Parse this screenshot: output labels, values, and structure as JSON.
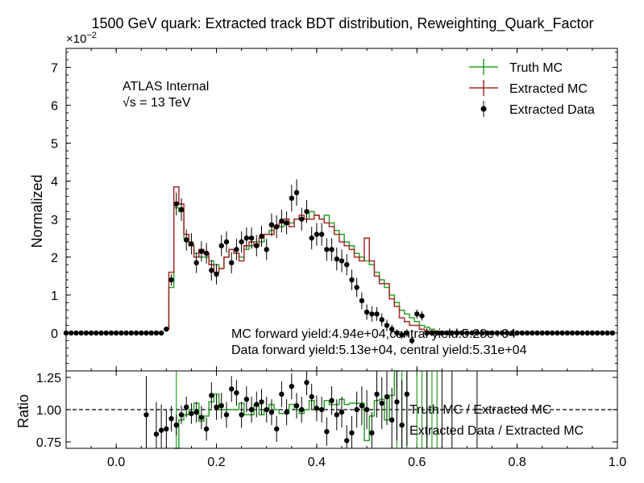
{
  "chart_data": [
    {
      "type": "line",
      "title": "1500 GeV quark: Extracted track BDT distribution, Reweighting_Quark_Factor",
      "ylabel": "Normalized",
      "y_multiplier_label": "×10",
      "y_multiplier_exp": "−2",
      "xlim": [
        -0.1,
        1.0
      ],
      "ylim": [
        -1,
        7.5
      ],
      "y_ticks": [
        0,
        1,
        2,
        3,
        4,
        5,
        6,
        7
      ],
      "y_tick_labels": [
        "0",
        "1",
        "2",
        "3",
        "4",
        "5",
        "6",
        "7"
      ],
      "annotations": {
        "experiment": "ATLAS Internal",
        "energy_sqrt": "√s",
        "energy_rest": " =  13 TeV",
        "mc_yield": "MC forward yield:4.94e+04,central yield:5.28e+04",
        "data_yield": "Data forward yield:5.13e+04, central yield:5.31e+04"
      },
      "legend": {
        "placement": "top-right",
        "entries": [
          "Truth MC",
          "Extracted MC",
          "Extracted Data"
        ]
      },
      "series": [
        {
          "name": "Truth MC",
          "color": "#2ca02c",
          "x": [
            0.1,
            0.11,
            0.12,
            0.13,
            0.14,
            0.15,
            0.16,
            0.17,
            0.18,
            0.19,
            0.2,
            0.21,
            0.22,
            0.23,
            0.24,
            0.25,
            0.26,
            0.27,
            0.28,
            0.29,
            0.3,
            0.31,
            0.32,
            0.33,
            0.34,
            0.35,
            0.36,
            0.37,
            0.38,
            0.39,
            0.4,
            0.41,
            0.42,
            0.43,
            0.44,
            0.45,
            0.46,
            0.47,
            0.48,
            0.49,
            0.5,
            0.51,
            0.52,
            0.53,
            0.54,
            0.55,
            0.56,
            0.57,
            0.58,
            0.59,
            0.6,
            0.61,
            0.62,
            0.63,
            0.64,
            0.65,
            0.66,
            0.67,
            0.68,
            0.69,
            0.7
          ],
          "values": [
            0.1,
            1.2,
            3.3,
            3.2,
            2.5,
            2.3,
            2.1,
            2.0,
            2.0,
            1.9,
            1.8,
            1.7,
            2.0,
            2.2,
            2.1,
            2.0,
            2.2,
            2.3,
            2.4,
            2.4,
            2.6,
            2.7,
            2.8,
            2.8,
            2.9,
            2.9,
            3.0,
            3.0,
            3.0,
            3.2,
            3.1,
            3.0,
            3.1,
            2.9,
            2.7,
            2.6,
            2.4,
            2.3,
            2.1,
            2.0,
            1.9,
            1.8,
            1.6,
            1.4,
            1.2,
            1.0,
            0.8,
            0.6,
            0.5,
            0.4,
            0.3,
            0.2,
            0.15,
            0.1,
            0.05,
            0.02,
            0,
            0,
            0,
            0,
            0
          ]
        },
        {
          "name": "Extracted MC",
          "color": "#a52a2a",
          "x": [
            0.1,
            0.11,
            0.12,
            0.13,
            0.14,
            0.15,
            0.16,
            0.17,
            0.18,
            0.19,
            0.2,
            0.21,
            0.22,
            0.23,
            0.24,
            0.25,
            0.26,
            0.27,
            0.28,
            0.29,
            0.3,
            0.31,
            0.32,
            0.33,
            0.34,
            0.35,
            0.36,
            0.37,
            0.38,
            0.39,
            0.4,
            0.41,
            0.42,
            0.43,
            0.44,
            0.45,
            0.46,
            0.47,
            0.48,
            0.49,
            0.5,
            0.51,
            0.52,
            0.53,
            0.54,
            0.55,
            0.56,
            0.57,
            0.58,
            0.59,
            0.6,
            0.61,
            0.62,
            0.63,
            0.64,
            0.65,
            0.66,
            0.67,
            0.68,
            0.69,
            0.7
          ],
          "values": [
            0.1,
            1.6,
            3.85,
            3.4,
            2.6,
            2.3,
            2.0,
            2.2,
            2.1,
            1.8,
            1.6,
            1.7,
            2.0,
            2.2,
            2.1,
            1.9,
            2.3,
            2.4,
            2.3,
            2.5,
            2.6,
            2.6,
            2.8,
            2.9,
            3.0,
            2.8,
            3.0,
            3.1,
            3.0,
            3.0,
            3.1,
            3.0,
            2.9,
            2.8,
            2.6,
            2.4,
            2.3,
            2.2,
            2.0,
            1.9,
            2.5,
            1.9,
            1.5,
            1.3,
            1.3,
            0.9,
            0.7,
            0.4,
            0.3,
            0.2,
            0.2,
            0.1,
            0.05,
            0.05,
            0.02,
            0.0,
            0,
            0,
            0,
            0,
            0
          ]
        },
        {
          "name": "Extracted Data",
          "color": "#000000",
          "x": [
            0.1,
            0.11,
            0.12,
            0.13,
            0.14,
            0.15,
            0.16,
            0.17,
            0.18,
            0.19,
            0.2,
            0.21,
            0.22,
            0.23,
            0.24,
            0.25,
            0.26,
            0.27,
            0.28,
            0.29,
            0.3,
            0.31,
            0.32,
            0.33,
            0.34,
            0.35,
            0.36,
            0.37,
            0.38,
            0.39,
            0.4,
            0.41,
            0.42,
            0.43,
            0.44,
            0.45,
            0.46,
            0.47,
            0.48,
            0.49,
            0.5,
            0.51,
            0.52,
            0.53,
            0.54,
            0.55,
            0.56,
            0.57,
            0.58,
            0.59,
            0.6,
            0.61,
            0.62,
            0.63,
            0.64,
            0.65,
            0.66,
            0.67,
            0.68,
            0.69,
            0.7
          ],
          "values": [
            0.1,
            1.4,
            3.4,
            3.25,
            2.45,
            2.35,
            1.85,
            2.15,
            2.1,
            1.65,
            1.55,
            2.3,
            2.4,
            1.85,
            2.2,
            2.4,
            2.5,
            2.5,
            2.3,
            2.55,
            2.2,
            2.85,
            2.8,
            2.95,
            2.9,
            3.55,
            3.7,
            3.0,
            3.2,
            2.5,
            2.6,
            2.6,
            2.2,
            2.2,
            1.95,
            1.9,
            1.8,
            1.4,
            1.2,
            0.85,
            0.55,
            0.5,
            0.5,
            0.35,
            0.2,
            0.1,
            0.0,
            -0.05,
            0.0,
            -0.2,
            0.5,
            0.45,
            0.0,
            0.0,
            0.0,
            0.0,
            0.0,
            0.0,
            0.0,
            0.0,
            0.0
          ],
          "errors": [
            0.05,
            0.15,
            0.3,
            0.3,
            0.28,
            0.28,
            0.27,
            0.27,
            0.27,
            0.27,
            0.27,
            0.28,
            0.28,
            0.28,
            0.28,
            0.28,
            0.28,
            0.28,
            0.28,
            0.28,
            0.28,
            0.3,
            0.3,
            0.3,
            0.3,
            0.35,
            0.35,
            0.3,
            0.3,
            0.3,
            0.3,
            0.3,
            0.3,
            0.3,
            0.3,
            0.3,
            0.28,
            0.27,
            0.25,
            0.22,
            0.2,
            0.2,
            0.18,
            0.17,
            0.15,
            0.12,
            0.1,
            0.1,
            0.1,
            0.1,
            0.12,
            0.12,
            0.1,
            0.08,
            0.06,
            0.05,
            0.04,
            0.03,
            0.02,
            0.02,
            0.02
          ]
        }
      ]
    },
    {
      "type": "line",
      "ylabel": "Ratio",
      "xlim": [
        -0.1,
        1.0
      ],
      "ylim": [
        0.7,
        1.3
      ],
      "x_ticks": [
        0.0,
        0.2,
        0.4,
        0.6,
        0.8,
        1.0
      ],
      "x_tick_labels": [
        "0.0",
        "0.2",
        "0.4",
        "0.6",
        "0.8",
        "1.0"
      ],
      "y_ticks": [
        0.75,
        1.0,
        1.25
      ],
      "y_tick_labels": [
        "0.75",
        "1.00",
        "1.25"
      ],
      "reference_line": 1.0,
      "legend": {
        "placement": "right",
        "entries": [
          "Truth MC / Extracted MC",
          "Extracted Data / Extracted MC"
        ]
      },
      "series": [
        {
          "name": "Truth MC / Extracted MC",
          "color": "#2ca02c",
          "x": [
            0.12,
            0.13,
            0.14,
            0.15,
            0.16,
            0.17,
            0.18,
            0.19,
            0.2,
            0.21,
            0.22,
            0.23,
            0.24,
            0.25,
            0.26,
            0.27,
            0.28,
            0.29,
            0.3,
            0.31,
            0.32,
            0.33,
            0.34,
            0.35,
            0.36,
            0.37,
            0.38,
            0.39,
            0.4,
            0.41,
            0.42,
            0.43,
            0.44,
            0.45,
            0.46,
            0.47,
            0.48,
            0.49,
            0.5,
            0.51,
            0.52,
            0.53,
            0.54,
            0.55,
            0.56
          ],
          "values": [
            0.7,
            0.92,
            0.96,
            1.0,
            1.05,
            0.91,
            0.95,
            1.06,
            1.12,
            1.0,
            1.0,
            1.0,
            1.0,
            1.05,
            0.96,
            0.96,
            1.04,
            0.96,
            1.0,
            1.04,
            1.0,
            0.97,
            0.97,
            1.04,
            1.0,
            0.97,
            1.0,
            1.07,
            1.0,
            1.0,
            1.07,
            1.04,
            1.04,
            1.08,
            1.04,
            1.05,
            1.05,
            1.05,
            0.76,
            0.95,
            1.07,
            1.08,
            0.92,
            1.11,
            1.3
          ]
        },
        {
          "name": "Extracted Data / Extracted MC",
          "color": "#000000",
          "x": [
            0.06,
            0.08,
            0.09,
            0.1,
            0.11,
            0.12,
            0.13,
            0.14,
            0.15,
            0.16,
            0.17,
            0.18,
            0.19,
            0.2,
            0.21,
            0.22,
            0.23,
            0.24,
            0.25,
            0.26,
            0.27,
            0.28,
            0.29,
            0.3,
            0.31,
            0.32,
            0.33,
            0.34,
            0.35,
            0.36,
            0.37,
            0.38,
            0.39,
            0.4,
            0.41,
            0.42,
            0.43,
            0.44,
            0.45,
            0.46,
            0.47,
            0.48,
            0.49,
            0.5,
            0.51,
            0.52,
            0.53,
            0.54,
            0.55,
            0.56,
            0.57,
            0.58
          ],
          "values": [
            0.96,
            0.81,
            0.84,
            0.85,
            0.93,
            0.88,
            0.96,
            1.02,
            0.97,
            0.98,
            0.94,
            0.85,
            1.11,
            1.02,
            1.03,
            0.96,
            1.16,
            1.13,
            0.96,
            1.08,
            1.0,
            1.04,
            1.06,
            1.0,
            0.98,
            0.85,
            1.12,
            0.98,
            1.18,
            1.03,
            1.0,
            1.21,
            1.1,
            1.01,
            1.0,
            0.83,
            1.07,
            0.96,
            0.98,
            0.76,
            0.82,
            1.0,
            1.03,
            1.0,
            0.82,
            1.12,
            1.05,
            1.1,
            0.92,
            1.06,
            0.88,
            1.12
          ],
          "errors": [
            0.3,
            0.25,
            0.2,
            0.15,
            0.1,
            0.08,
            0.07,
            0.08,
            0.08,
            0.08,
            0.09,
            0.09,
            0.1,
            0.1,
            0.1,
            0.1,
            0.1,
            0.1,
            0.1,
            0.1,
            0.1,
            0.1,
            0.1,
            0.1,
            0.1,
            0.1,
            0.1,
            0.1,
            0.1,
            0.1,
            0.1,
            0.1,
            0.1,
            0.1,
            0.1,
            0.11,
            0.11,
            0.12,
            0.12,
            0.12,
            0.13,
            0.14,
            0.15,
            0.15,
            0.16,
            0.18,
            0.2,
            0.22,
            0.25,
            0.3,
            0.35,
            0.4
          ]
        }
      ]
    }
  ]
}
